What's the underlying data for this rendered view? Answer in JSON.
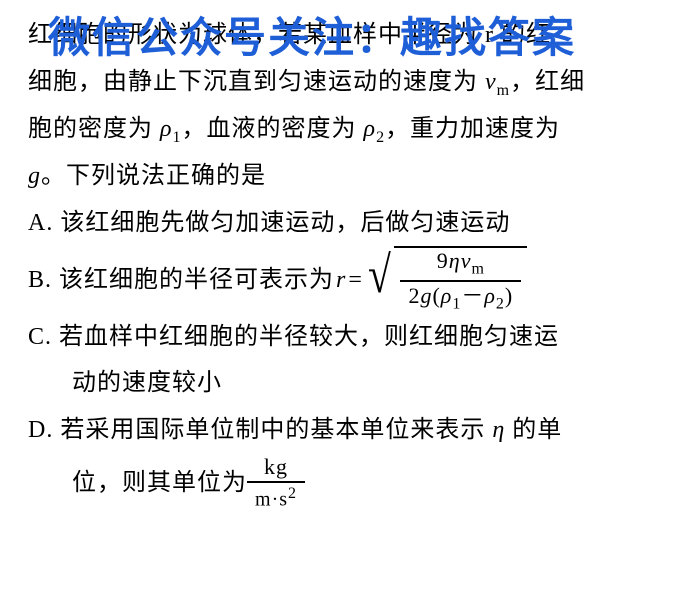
{
  "watermark": {
    "text": "微信公众号关注：趣找答案",
    "color": "#1e5fd8",
    "fontsize": 42
  },
  "body": {
    "color": "#000000",
    "background": "#ffffff",
    "fontsize": 24,
    "lineheight": 1.95
  },
  "text": {
    "l1": "红细胞的形状为球体，若某血样中半径为 r 的红",
    "l2a": "细胞，由静止下沉直到匀速运动的速度为 ",
    "l2v": "v",
    "l2m": "m",
    "l2b": "，红细",
    "l3a": "胞的密度为 ",
    "l3b": "，血液的密度为 ",
    "l3c": "，重力加速度为",
    "rho": "ρ",
    "one": "1",
    "two": "2",
    "l4a": "g",
    "l4b": "。下列说法正确的是",
    "optA": "A. 该红细胞先做匀加速运动，后做匀速运动",
    "optBprefix": "B. 该红细胞的半径可表示为 ",
    "r_eq": "r",
    "eq": "=",
    "num9": "9",
    "eta": "η",
    "numv": "v",
    "den2g": "2",
    "g": "g",
    "lparen": "(",
    "rparen": ")",
    "minus": "－",
    "optC1": "C. 若血样中红细胞的半径较大，则红细胞匀速运",
    "optC2": "动的速度较小",
    "optD1a": "D. 若采用国际单位制中的基本单位来表示 ",
    "optD1b": " 的单",
    "optD2": "位，则其单位为 ",
    "kg": "kg",
    "m": "m",
    "dot": "·",
    "s": "s",
    "sq": "2"
  }
}
